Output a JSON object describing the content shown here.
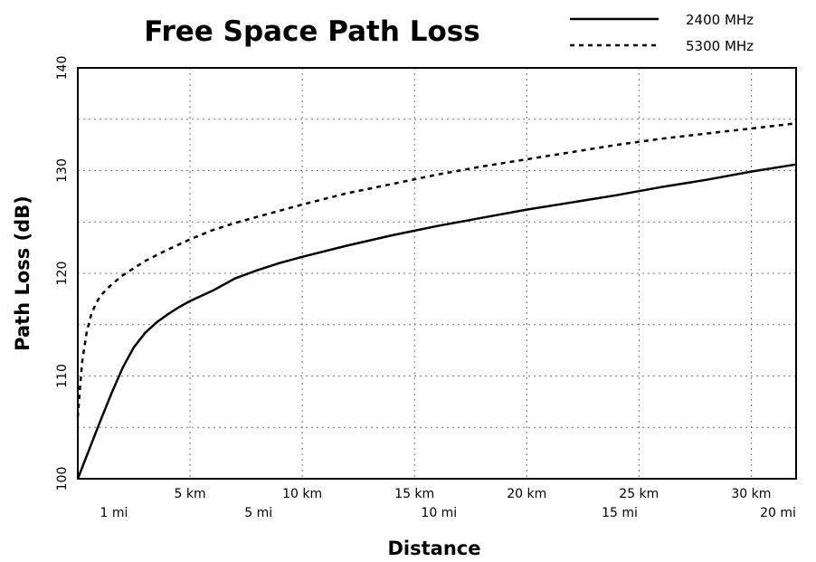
{
  "chart_data": {
    "type": "line",
    "title": "Free Space Path Loss",
    "xlabel": "Distance",
    "ylabel": "Path Loss (dB)",
    "xlim": [
      0,
      32
    ],
    "ylim": [
      100,
      140
    ],
    "x_unit": "km",
    "yticks": [
      100,
      110,
      120,
      130,
      140
    ],
    "xticks_km": [
      {
        "value": 5,
        "label": "5 km"
      },
      {
        "value": 10,
        "label": "10 km"
      },
      {
        "value": 15,
        "label": "15 km"
      },
      {
        "value": 20,
        "label": "20 km"
      },
      {
        "value": 25,
        "label": "25 km"
      },
      {
        "value": 30,
        "label": "30 km"
      }
    ],
    "xticks_mi": [
      {
        "value": 1.609,
        "label": "1 mi"
      },
      {
        "value": 8.047,
        "label": "5 mi"
      },
      {
        "value": 16.093,
        "label": "10 mi"
      },
      {
        "value": 24.14,
        "label": "15 mi"
      },
      {
        "value": 32.187,
        "label": "20 mi"
      }
    ],
    "grid": true,
    "legend_position": "top-right",
    "series": [
      {
        "name": "2400 MHz",
        "style": "solid",
        "color": "#000000",
        "x": [
          0,
          0.5,
          1,
          1.5,
          2,
          2.5,
          3,
          3.5,
          4,
          4.5,
          5,
          6,
          7,
          8,
          9,
          10,
          12,
          14,
          16,
          18,
          20,
          22,
          24,
          26,
          28,
          30,
          32
        ],
        "y": [
          100.0,
          102.8,
          105.6,
          108.3,
          110.8,
          112.8,
          114.2,
          115.2,
          116.0,
          116.7,
          117.3,
          118.3,
          119.5,
          120.3,
          121.0,
          121.6,
          122.7,
          123.7,
          124.6,
          125.4,
          126.2,
          126.9,
          127.6,
          128.4,
          129.1,
          129.9,
          130.6
        ]
      },
      {
        "name": "5300 MHz",
        "style": "dashed",
        "color": "#000000",
        "x": [
          0,
          0.1,
          0.2,
          0.4,
          0.6,
          0.8,
          1,
          1.5,
          2,
          3,
          4,
          5,
          6,
          7,
          8,
          10,
          12,
          14,
          16,
          18,
          20,
          22,
          24,
          26,
          28,
          30,
          32
        ],
        "y": [
          106.0,
          109.0,
          111.5,
          114.3,
          116.0,
          117.0,
          117.8,
          118.9,
          119.8,
          121.2,
          122.3,
          123.3,
          124.2,
          124.9,
          125.5,
          126.7,
          127.8,
          128.7,
          129.6,
          130.4,
          131.1,
          131.8,
          132.5,
          133.1,
          133.6,
          134.1,
          134.6
        ]
      }
    ]
  }
}
